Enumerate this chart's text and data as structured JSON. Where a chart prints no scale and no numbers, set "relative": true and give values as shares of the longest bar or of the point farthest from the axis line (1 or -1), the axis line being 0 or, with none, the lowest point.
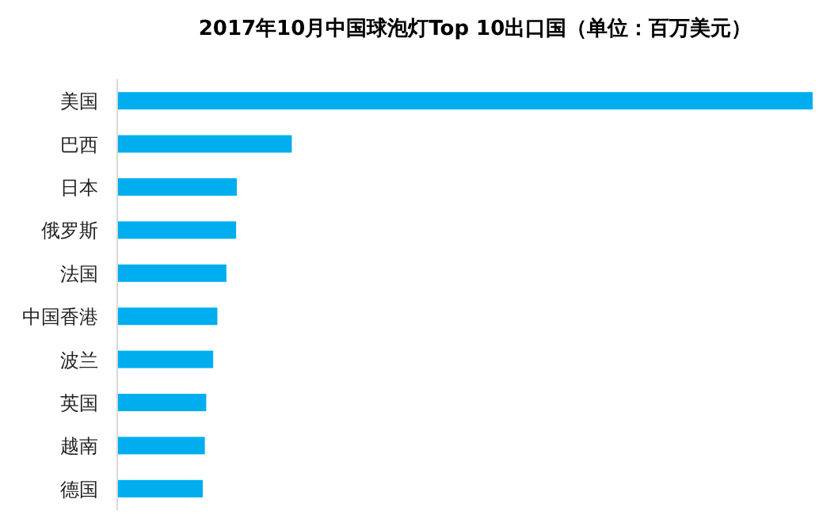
{
  "chart_data": {
    "type": "bar",
    "orientation": "horizontal",
    "relative": true,
    "title": "2017年10月中国球泡灯Top 10出口国（单位：百万美元）",
    "categories": [
      "美国",
      "巴西",
      "日本",
      "俄罗斯",
      "法国",
      "中国香港",
      "波兰",
      "英国",
      "越南",
      "德国"
    ],
    "values": [
      1,
      0.251,
      0.172,
      0.171,
      0.157,
      0.144,
      0.138,
      0.128,
      0.126,
      0.123
    ],
    "color": "#00aeef"
  }
}
